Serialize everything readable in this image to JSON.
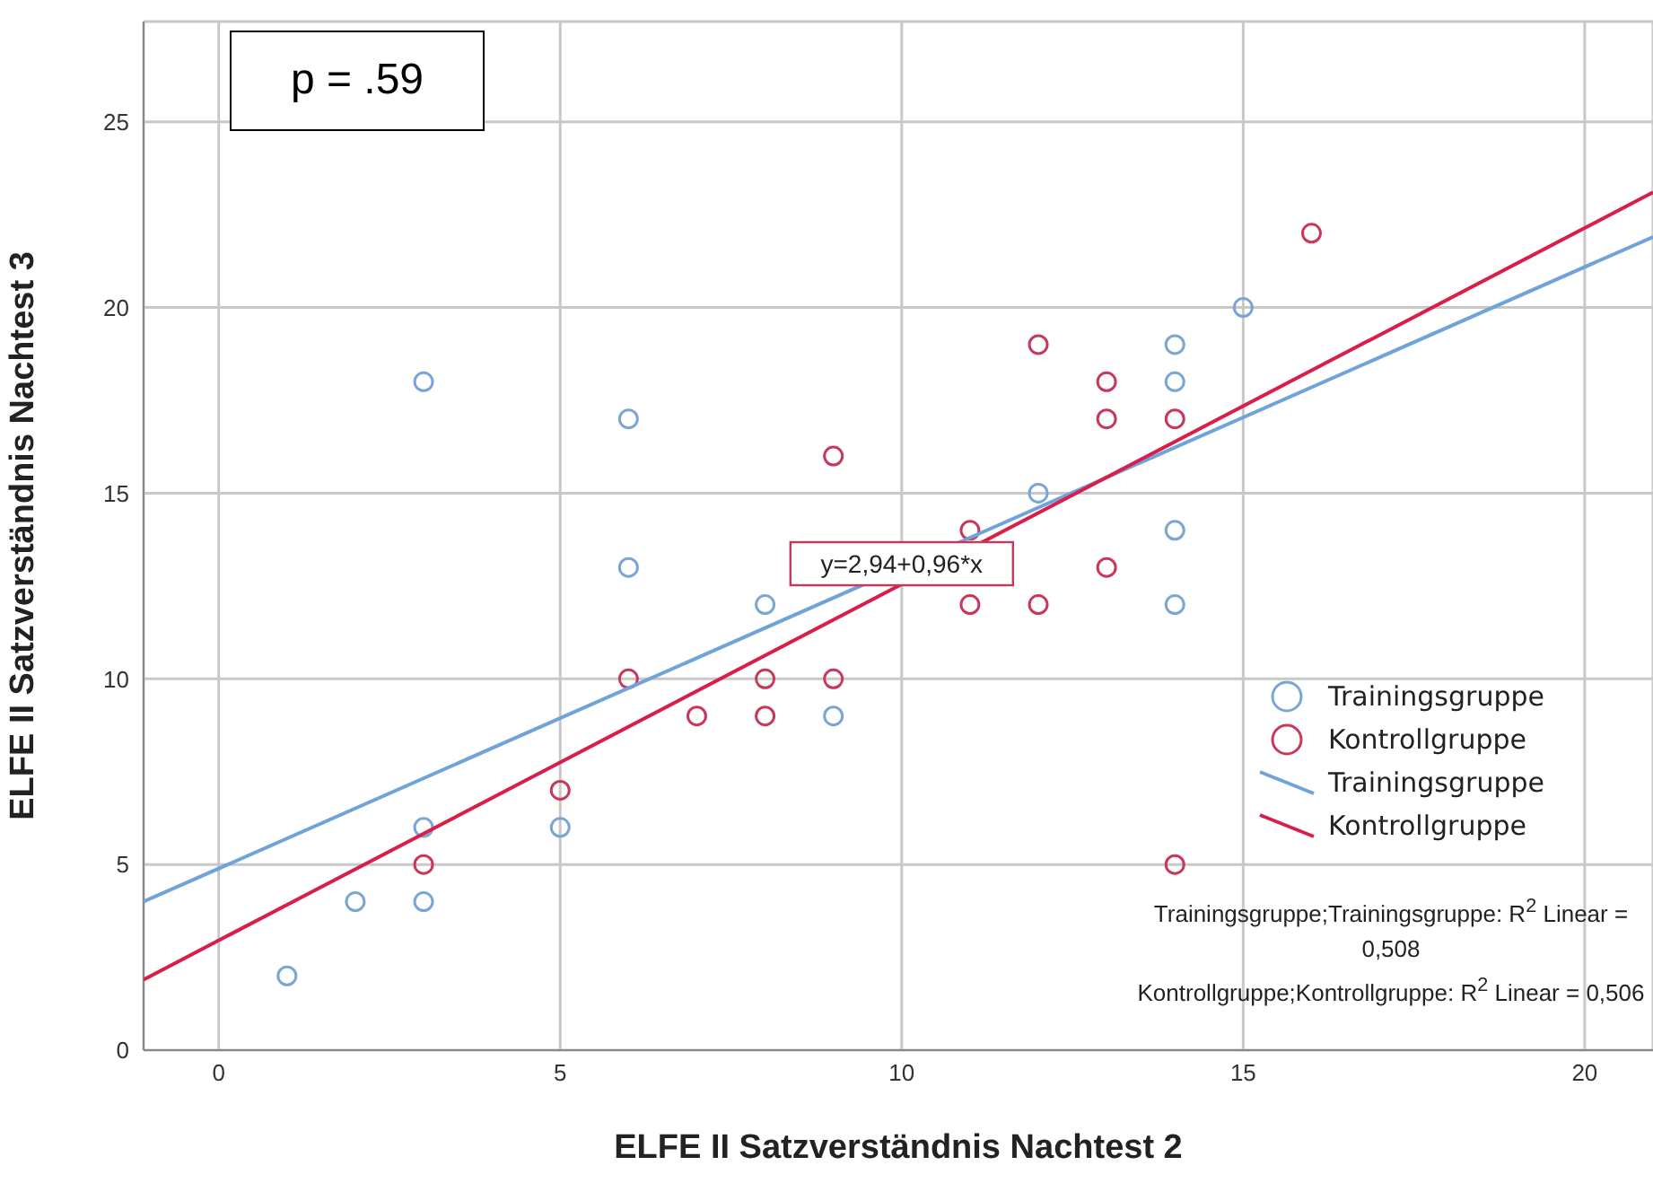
{
  "chart_data": {
    "type": "scatter",
    "xlabel": "ELFE II Satzverständnis Nachtest 2",
    "ylabel": "ELFE II Satzverständnis Nachtest 3",
    "xlim": [
      -1.1,
      21
    ],
    "ylim": [
      0,
      27.7
    ],
    "xticks": [
      0,
      5,
      10,
      15,
      20
    ],
    "yticks": [
      0,
      5,
      10,
      15,
      20,
      25
    ],
    "grid": true,
    "legend": "bottom right",
    "marker": "circle",
    "series": [
      {
        "name": "Trainingsgruppe",
        "color": "#7aa6d6",
        "x": [
          1,
          2,
          3,
          3,
          3,
          5,
          6,
          6,
          8,
          9,
          12,
          14,
          14,
          14,
          14,
          15
        ],
        "values": [
          2,
          4,
          4,
          6,
          18,
          6,
          17,
          13,
          12,
          9,
          15,
          19,
          18,
          14,
          12,
          20
        ]
      },
      {
        "name": "Kontrollgruppe",
        "color": "#c8385a",
        "x": [
          3,
          5,
          6,
          7,
          8,
          8,
          9,
          9,
          11,
          11,
          12,
          12,
          13,
          13,
          13,
          14,
          14,
          16
        ],
        "values": [
          5,
          7,
          10,
          9,
          10,
          9,
          10,
          16,
          14,
          12,
          19,
          12,
          18,
          17,
          13,
          17,
          5,
          22
        ]
      },
      {
        "name": "Trainingsgruppe",
        "type": "line",
        "marker": "none",
        "color": "#6fa3da",
        "x": [
          -1.1,
          21
        ],
        "values": [
          4.0,
          21.9
        ]
      },
      {
        "name": "Kontrollgruppe",
        "type": "line",
        "marker": "none",
        "color": "#d81f4a",
        "x": [
          -1.1,
          21
        ],
        "values": [
          1.9,
          23.1
        ]
      }
    ],
    "annotations": [
      "p = .59",
      {
        "text": "y=2,94+0,96*x",
        "x": 10,
        "y": 13.1
      },
      "Trainingsgruppe;Trainingsgruppe: R$^{2}$ Linear = 0,508",
      "Kontrollgruppe;Kontrollgruppe: R$^{2}$ Linear = 0,506"
    ]
  }
}
